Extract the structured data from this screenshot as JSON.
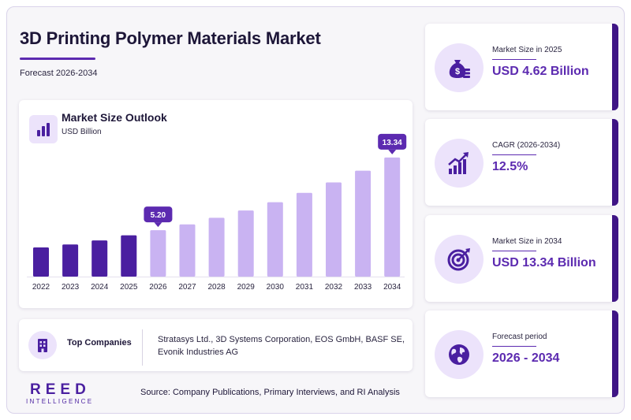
{
  "header": {
    "title": "3D Printing Polymer Materials Market",
    "subtitle": "Forecast 2026-2034"
  },
  "chart_card": {
    "heading": "Market Size Outlook",
    "unit": "USD Billion",
    "icon": "bar-chart-icon"
  },
  "chart_data": {
    "type": "bar",
    "title": "Market Size Outlook",
    "ylabel": "USD Billion",
    "categories": [
      "2022",
      "2023",
      "2024",
      "2025",
      "2026",
      "2027",
      "2028",
      "2029",
      "2030",
      "2031",
      "2032",
      "2033",
      "2034"
    ],
    "values": [
      3.27,
      3.6,
      4.05,
      4.62,
      5.2,
      5.85,
      6.58,
      7.4,
      8.33,
      9.37,
      10.54,
      11.86,
      13.34
    ],
    "ylim": [
      0,
      15
    ],
    "highlight": [
      {
        "category": "2026",
        "label": "5.20"
      },
      {
        "category": "2034",
        "label": "13.34"
      }
    ],
    "historical_count": 4,
    "colors": {
      "historical": "#4a1fa0",
      "forecast": "#c9b3f2",
      "callout": "#5c2ab0"
    },
    "grid": false,
    "legend": "none"
  },
  "companies": {
    "label": "Top Companies",
    "text": "Stratasys Ltd., 3D Systems Corporation, EOS GmbH, BASF SE, Evonik Industries AG",
    "icon": "building-icon"
  },
  "footer": {
    "logo_main": "REED",
    "logo_sub": "INTELLIGENCE",
    "source": "Source: Company Publications, Primary Interviews, and RI Analysis"
  },
  "kpis": [
    {
      "label": "Market Size in 2025",
      "value": "USD 4.62 Billion",
      "icon": "money-bag-icon"
    },
    {
      "label": "CAGR (2026-2034)",
      "value": "12.5%",
      "icon": "growth-chart-icon"
    },
    {
      "label": "Market Size in 2034",
      "value": "USD 13.34 Billion",
      "icon": "target-icon"
    },
    {
      "label": "Forecast period",
      "value": "2026 - 2034",
      "icon": "globe-icon"
    }
  ],
  "colors": {
    "accent": "#5c2ab0",
    "dark_accent": "#3f1585",
    "icon_bg": "#ece3fb"
  }
}
